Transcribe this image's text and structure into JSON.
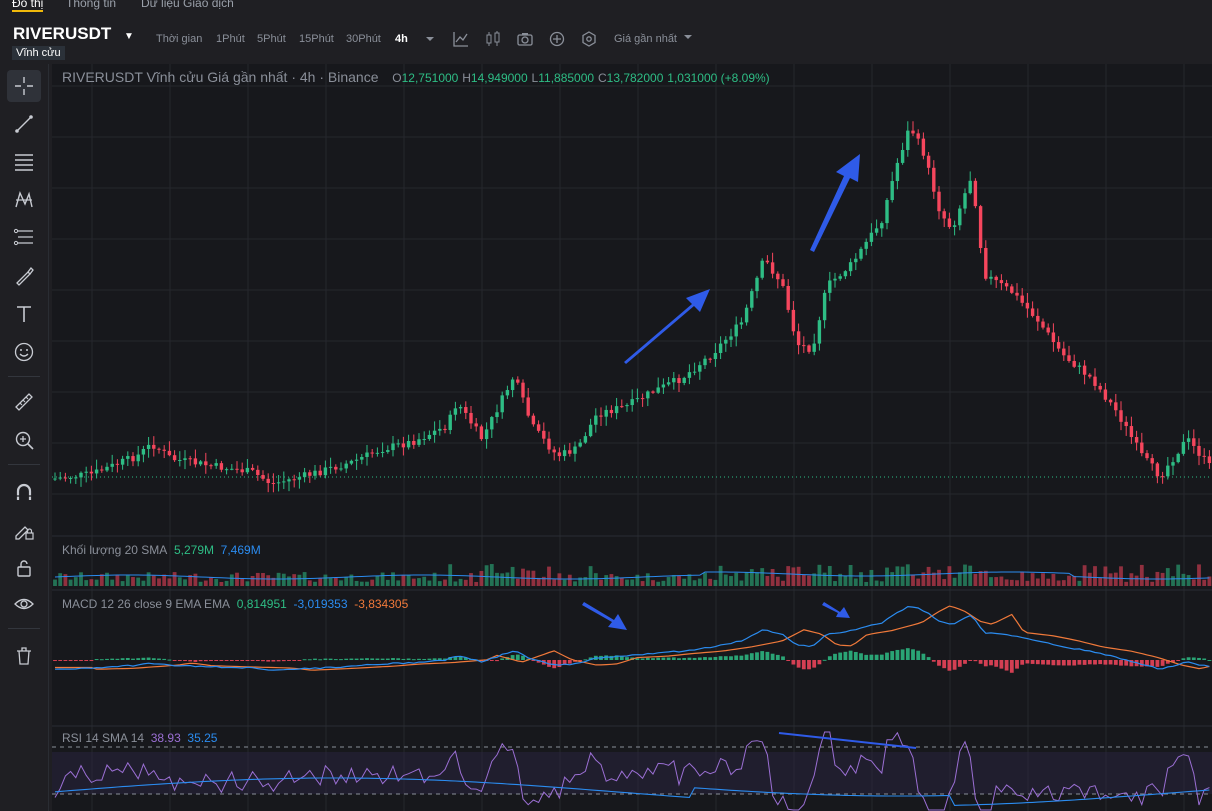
{
  "top_tabs": [
    "Đồ thị",
    "Thông tin",
    "Dữ liệu Giao dịch"
  ],
  "header": {
    "symbol": "RIVERUSDT",
    "contract_type": "Vĩnh cửu",
    "timeframes": [
      "Thời gian",
      "1Phút",
      "5Phút",
      "15Phút",
      "30Phút",
      "4h"
    ],
    "selected_timeframe": "4h",
    "price_type": "Giá gần nhất"
  },
  "legend": {
    "title": "RIVERUSDT Vĩnh cửu Giá gần nhất · 4h · Binance",
    "open_label": "O",
    "open": "12,751000",
    "high_label": "H",
    "high": "14,949000",
    "low_label": "L",
    "low": "11,885000",
    "close_label": "C",
    "close": "13,782000",
    "change": "1,031000 (+8.09%)"
  },
  "volume": {
    "label": "Khối lượng 20 SMA",
    "v1": "5,279M",
    "v2": "7,469M"
  },
  "macd": {
    "label": "MACD 12 26 close 9 EMA EMA",
    "hist": "0,814951",
    "macd": "-3,019353",
    "signal": "-3,834305"
  },
  "rsi": {
    "label": "RSI 14 SMA 14",
    "rsi": "38.93",
    "sma": "35.25"
  },
  "colors": {
    "up": "#2ebd85",
    "down": "#f6465d",
    "accent": "#f0b90b",
    "arrow": "#2f5be8",
    "background": "#17181c"
  },
  "tools": [
    "crosshair-icon",
    "trend-line-icon",
    "horizontal-lines-icon",
    "pattern-icon",
    "fib-icon",
    "brush-icon",
    "text-icon",
    "emoji-icon",
    "ruler-icon",
    "zoom-in-icon",
    "magnet-icon",
    "pencil-lock-icon",
    "lock-icon",
    "eye-icon",
    "trash-icon"
  ]
}
